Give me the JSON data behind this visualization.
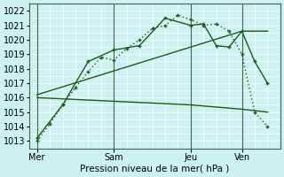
{
  "xlabel": "Pression niveau de la mer( hPa )",
  "bg_color": "#cdf0f0",
  "grid_minor_color": "#aadddd",
  "grid_major_color": "#88cccc",
  "line_color": "#1a5c1a",
  "ylim": [
    1012.5,
    1022.5
  ],
  "yticks": [
    1013,
    1014,
    1015,
    1016,
    1017,
    1018,
    1019,
    1020,
    1021,
    1022
  ],
  "xtick_labels": [
    "Mer",
    "Sam",
    "Jeu",
    "Ven"
  ],
  "xtick_positions": [
    0,
    30,
    60,
    80
  ],
  "xlim": [
    -3,
    95
  ],
  "lines": [
    {
      "x": [
        0,
        5,
        10,
        15,
        20,
        25,
        30,
        35,
        40,
        45,
        50,
        55,
        60,
        65,
        70,
        75,
        80,
        85,
        90
      ],
      "y": [
        1013.0,
        1014.2,
        1015.5,
        1016.7,
        1017.8,
        1018.8,
        1018.6,
        1019.4,
        1020.0,
        1020.8,
        1021.0,
        1021.7,
        1021.4,
        1021.0,
        1021.1,
        1020.6,
        1019.0,
        1015.0,
        1014.0
      ],
      "style": "dotted",
      "marker": "+",
      "lw": 1.0
    },
    {
      "x": [
        0,
        10,
        20,
        30,
        40,
        50,
        60,
        65,
        70,
        75,
        80,
        85,
        90
      ],
      "y": [
        1013.2,
        1015.5,
        1018.5,
        1019.3,
        1019.6,
        1021.5,
        1021.0,
        1021.1,
        1019.6,
        1019.5,
        1020.6,
        1018.5,
        1017.0
      ],
      "style": "-",
      "marker": "+",
      "lw": 1.0
    },
    {
      "x": [
        0,
        60,
        80,
        90
      ],
      "y": [
        1016.2,
        1019.5,
        1020.6,
        1020.6
      ],
      "style": "-",
      "marker": null,
      "lw": 1.0
    },
    {
      "x": [
        0,
        60,
        80,
        90
      ],
      "y": [
        1016.0,
        1015.5,
        1015.2,
        1015.0
      ],
      "style": "-",
      "marker": null,
      "lw": 1.0
    }
  ]
}
